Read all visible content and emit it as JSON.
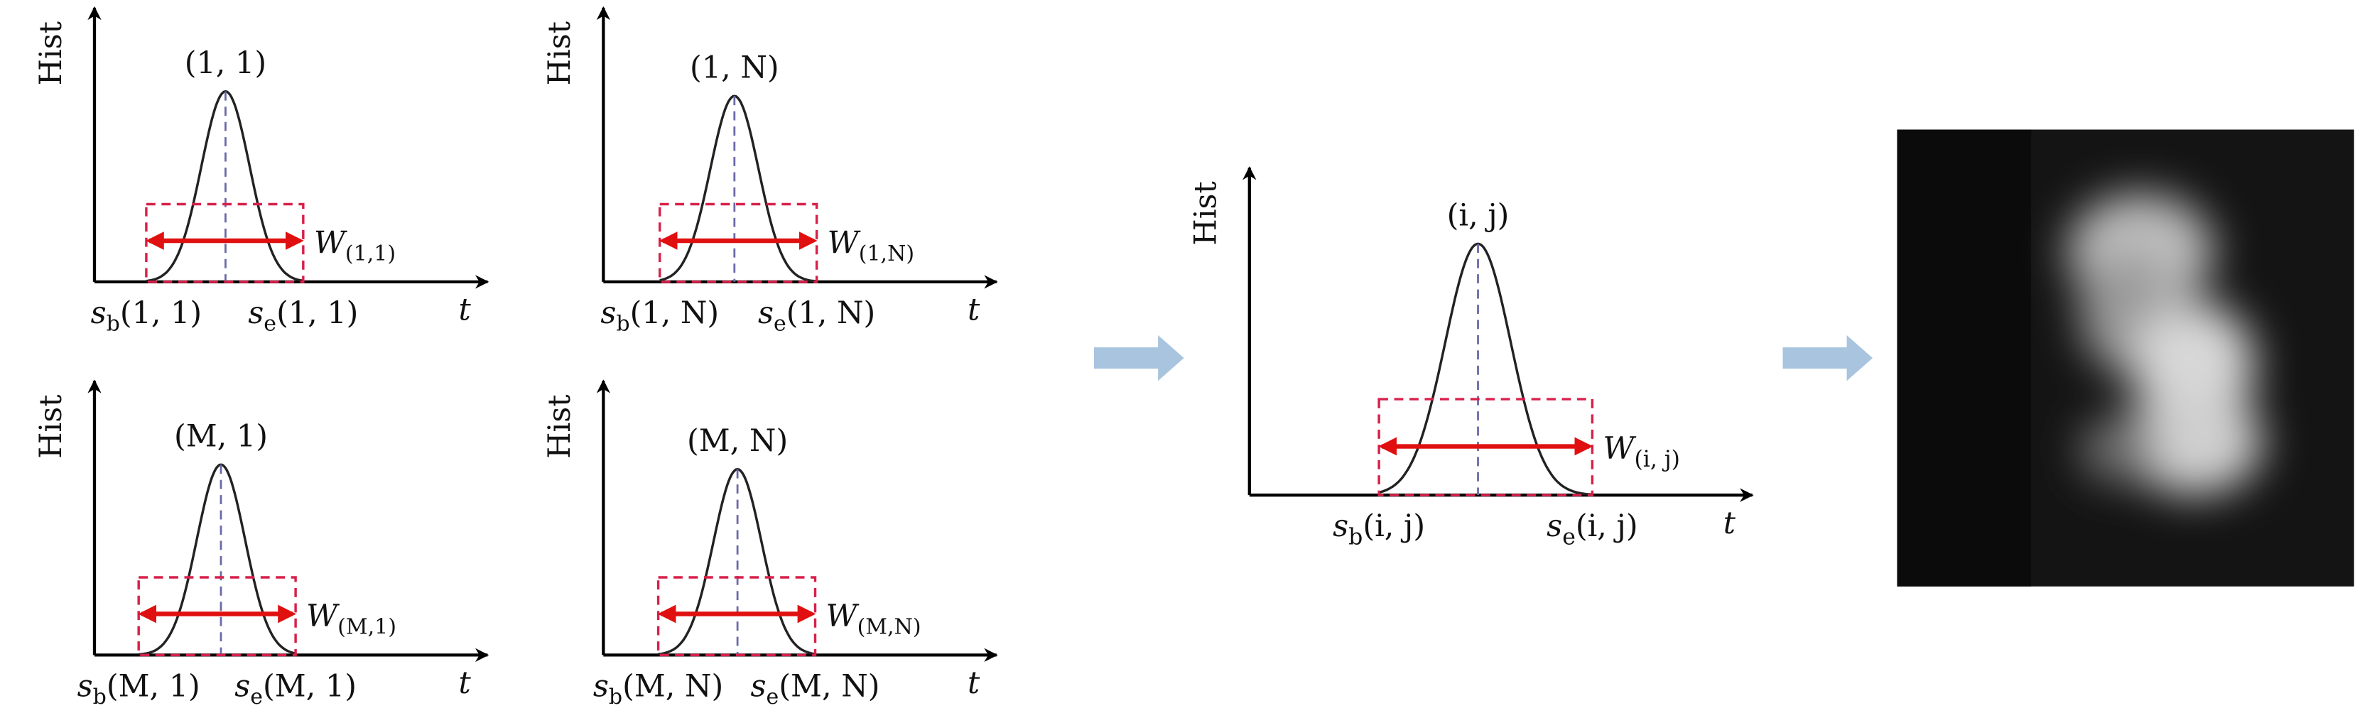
{
  "panels": [
    {
      "y_label": "Hist",
      "x_label": "t",
      "title": "(1, 1)",
      "start": {
        "symbol": "s",
        "sub": "b",
        "arg": "(1, 1)"
      },
      "end": {
        "symbol": "s",
        "sub": "e",
        "arg": "(1, 1)"
      },
      "width": {
        "symbol": "W",
        "sub": "(1,1)"
      }
    },
    {
      "y_label": "Hist",
      "x_label": "t",
      "title": "(1, N)",
      "start": {
        "symbol": "s",
        "sub": "b",
        "arg": "(1, N)"
      },
      "end": {
        "symbol": "s",
        "sub": "e",
        "arg": "(1, N)"
      },
      "width": {
        "symbol": "W",
        "sub": "(1,N)"
      }
    },
    {
      "y_label": "Hist",
      "x_label": "t",
      "title": "(M, 1)",
      "start": {
        "symbol": "s",
        "sub": "b",
        "arg": "(M, 1)"
      },
      "end": {
        "symbol": "s",
        "sub": "e",
        "arg": "(M, 1)"
      },
      "width": {
        "symbol": "W",
        "sub": "(M,1)"
      }
    },
    {
      "y_label": "Hist",
      "x_label": "t",
      "title": "(M, N)",
      "start": {
        "symbol": "s",
        "sub": "b",
        "arg": "(M, N)"
      },
      "end": {
        "symbol": "s",
        "sub": "e",
        "arg": "(M, N)"
      },
      "width": {
        "symbol": "W",
        "sub": "(M,N)"
      }
    },
    {
      "y_label": "Hist",
      "x_label": "t",
      "title": "(i, j)",
      "start": {
        "symbol": "s",
        "sub": "b",
        "arg": "(i, j)"
      },
      "end": {
        "symbol": "s",
        "sub": "e",
        "arg": "(i, j)"
      },
      "width": {
        "symbol": "W",
        "sub": "(i, j)"
      }
    }
  ]
}
